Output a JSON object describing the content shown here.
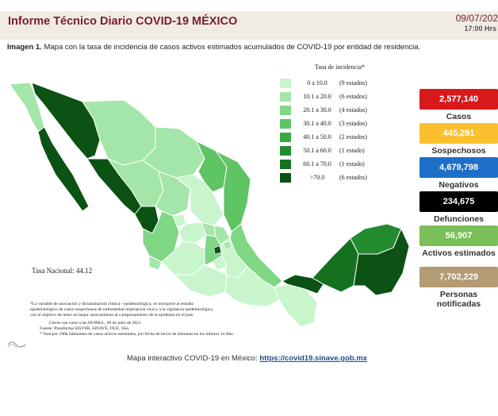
{
  "header": {
    "title": "Informe Técnico Diario COVID-19 MÉXICO",
    "date": "09/07/202",
    "time": "17:00 Hrs"
  },
  "subtitle": {
    "label": "Imagen 1.",
    "text": " Mapa con la tasa de incidencia de casos activos estimados acumulados de COVID-19 por entidad de residencia."
  },
  "legend": {
    "title": "Tasa de incidencia*",
    "items": [
      {
        "range": "0 a 10.0",
        "count": "(9 estados)",
        "color": "#c8f5cc"
      },
      {
        "range": "10.1 a 20.0",
        "count": "(6 estados)",
        "color": "#a4e6a9"
      },
      {
        "range": "20.1 a 30.0",
        "count": "(4 estados)",
        "color": "#7fd684"
      },
      {
        "range": "30.1 a 40.0",
        "count": "(3 estados)",
        "color": "#5ec464"
      },
      {
        "range": "40.1 a 50.0",
        "count": "(2 estados)",
        "color": "#3ba844"
      },
      {
        "range": "50.1 a 60.0",
        "count": "(1 estado)",
        "color": "#228b2e"
      },
      {
        "range": "60.1 a 70.0",
        "count": "(1 estado)",
        "color": "#15711f"
      },
      {
        "range": ">70.0",
        "count": "(6 estados)",
        "color": "#0b5214"
      }
    ]
  },
  "tasa_nacional": "Tasa Nacional: 44.12",
  "notes": {
    "line1": "*La variable de asociación y dictaminación clínica - epidemiológica, se incorporó al estudio",
    "line2": "epidemiológico de casos sospechosos de enfermedad respiratoria viral y a la vigilancia epidemiológica,",
    "line3": "con el objetivo de tener un mejor acercamiento al comportamiento de la epidemia en el país.",
    "cut1": "Cierre con corte a las 09:00hrs., 09 de julio de 2021",
    "cut2": "Fuente: Plataforma SISVER, SINAVE, DGE, SSa.",
    "cut3": "* Tasa por 100k habitantes de casos activos estimados, por fecha de inicio de síntomas en los últimos 14 días."
  },
  "stats": [
    {
      "value": "2,577,140",
      "label": "Casos",
      "color": "#d7191c"
    },
    {
      "value": "445,291",
      "label": "Sospechosos",
      "color": "#fbc02d"
    },
    {
      "value": "4,679,798",
      "label": "Negativos",
      "color": "#1e6fc8"
    },
    {
      "value": "234,675",
      "label": "Defunciones",
      "color": "#000000"
    },
    {
      "value": "56,907",
      "label": "Activos estimados",
      "color": "#7bbf58"
    },
    {
      "value": "7,702,229",
      "label": "Personas notificadas",
      "color": "#b39b73"
    }
  ],
  "footer": {
    "text": "Mapa interactivo COVID-19 en México: ",
    "link": "https://covid19.sinave.gob.mx"
  }
}
